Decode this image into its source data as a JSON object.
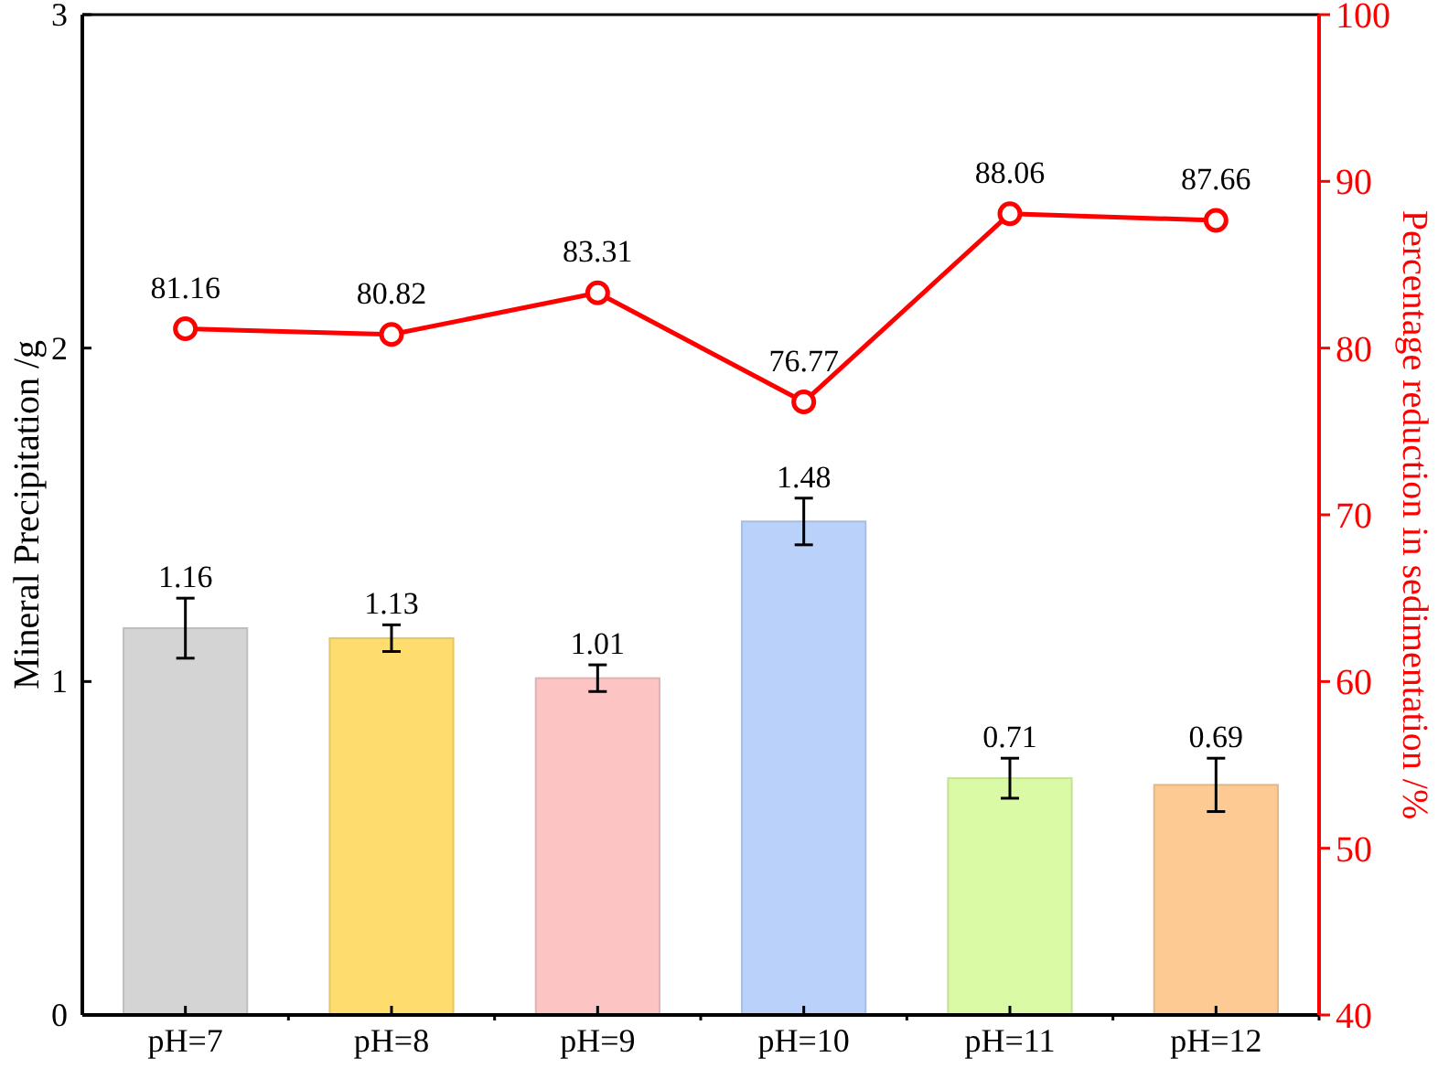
{
  "chart_data": {
    "type": "bar",
    "ylabel": "Mineral Precipitation /g",
    "y2label": "Percentage reduction in sedimentation /%",
    "categories": [
      "pH=7",
      "pH=8",
      "pH=9",
      "pH=10",
      "pH=11",
      "pH=12"
    ],
    "series": [
      {
        "values": [
          1.16,
          1.13,
          1.01,
          1.48,
          0.71,
          0.69
        ],
        "colors": [
          "#d4d4d4",
          "#fedc6e",
          "#fdc4c4",
          "#bad2fa",
          "#dafaa5",
          "#fdca93"
        ],
        "errors": [
          0.09,
          0.04,
          0.04,
          0.07,
          0.06,
          0.08
        ]
      },
      {
        "type": "line",
        "axis": "y2",
        "color": "#ff0000",
        "marker": "circle",
        "values": [
          81.16,
          80.82,
          83.31,
          76.77,
          88.06,
          87.66
        ]
      }
    ],
    "ylim": [
      0,
      3
    ],
    "yticks": [
      0,
      1,
      2,
      3
    ],
    "y2lim": [
      40,
      100
    ],
    "y2ticks": [
      40,
      50,
      60,
      70,
      80,
      90,
      100
    ],
    "data_labels": true,
    "grid": false
  }
}
